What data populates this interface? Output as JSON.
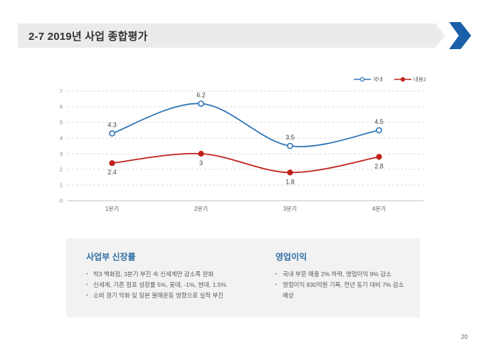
{
  "slide": {
    "title": "2-7 2019년 사업 종합평가",
    "page_number": "20"
  },
  "chart_data": {
    "type": "line",
    "categories": [
      "1분기",
      "2분기",
      "3분기",
      "4분기"
    ],
    "series": [
      {
        "name": "국내",
        "values": [
          4.3,
          6.2,
          3.5,
          4.5
        ],
        "color": "#2E75B6",
        "marker": "open-circle",
        "labels": "above"
      },
      {
        "name": "내용2",
        "values": [
          2.4,
          3,
          1.8,
          2.8
        ],
        "color": "#C0211B",
        "marker": "filled-circle",
        "labels": "below"
      }
    ],
    "ylim": [
      0,
      7
    ],
    "ytick_step": 1,
    "grid": "dashed-horizontal",
    "legend_position": "top-right",
    "smooth": true
  },
  "summary": {
    "left": {
      "heading": "사업부 신장률",
      "bullets": [
        "빅3 백화점, 3분기 부진 속 신세계만 감소폭 완화",
        "신세계, 기존 점포 성장률 5%, 롯데, -1%, 현대, 1.5%",
        "소비 경기 악화 및 일본 불매운동 영향으로 실적 부진"
      ]
    },
    "right": {
      "heading": "영업이익",
      "bullets": [
        "국내 부문 매출 2% 하락, 영업이익 9% 감소",
        "영업이익 830억원 기록, 전년 동기 대비 7% 감소 예상"
      ]
    }
  },
  "colors": {
    "header_bg": "#EBEBEB",
    "chevron_blue": "#1A5FA8",
    "series_blue": "#2E75B6",
    "series_red": "#C0211B",
    "gridline": "#D9D9D9",
    "axis_line": "#BFBFBF",
    "tick_text": "#7F7F7F",
    "category_text": "#595959",
    "data_label_text": "#3F3F3F",
    "summary_bg": "#F2F2F2",
    "heading_blue": "#2E6DA4"
  }
}
